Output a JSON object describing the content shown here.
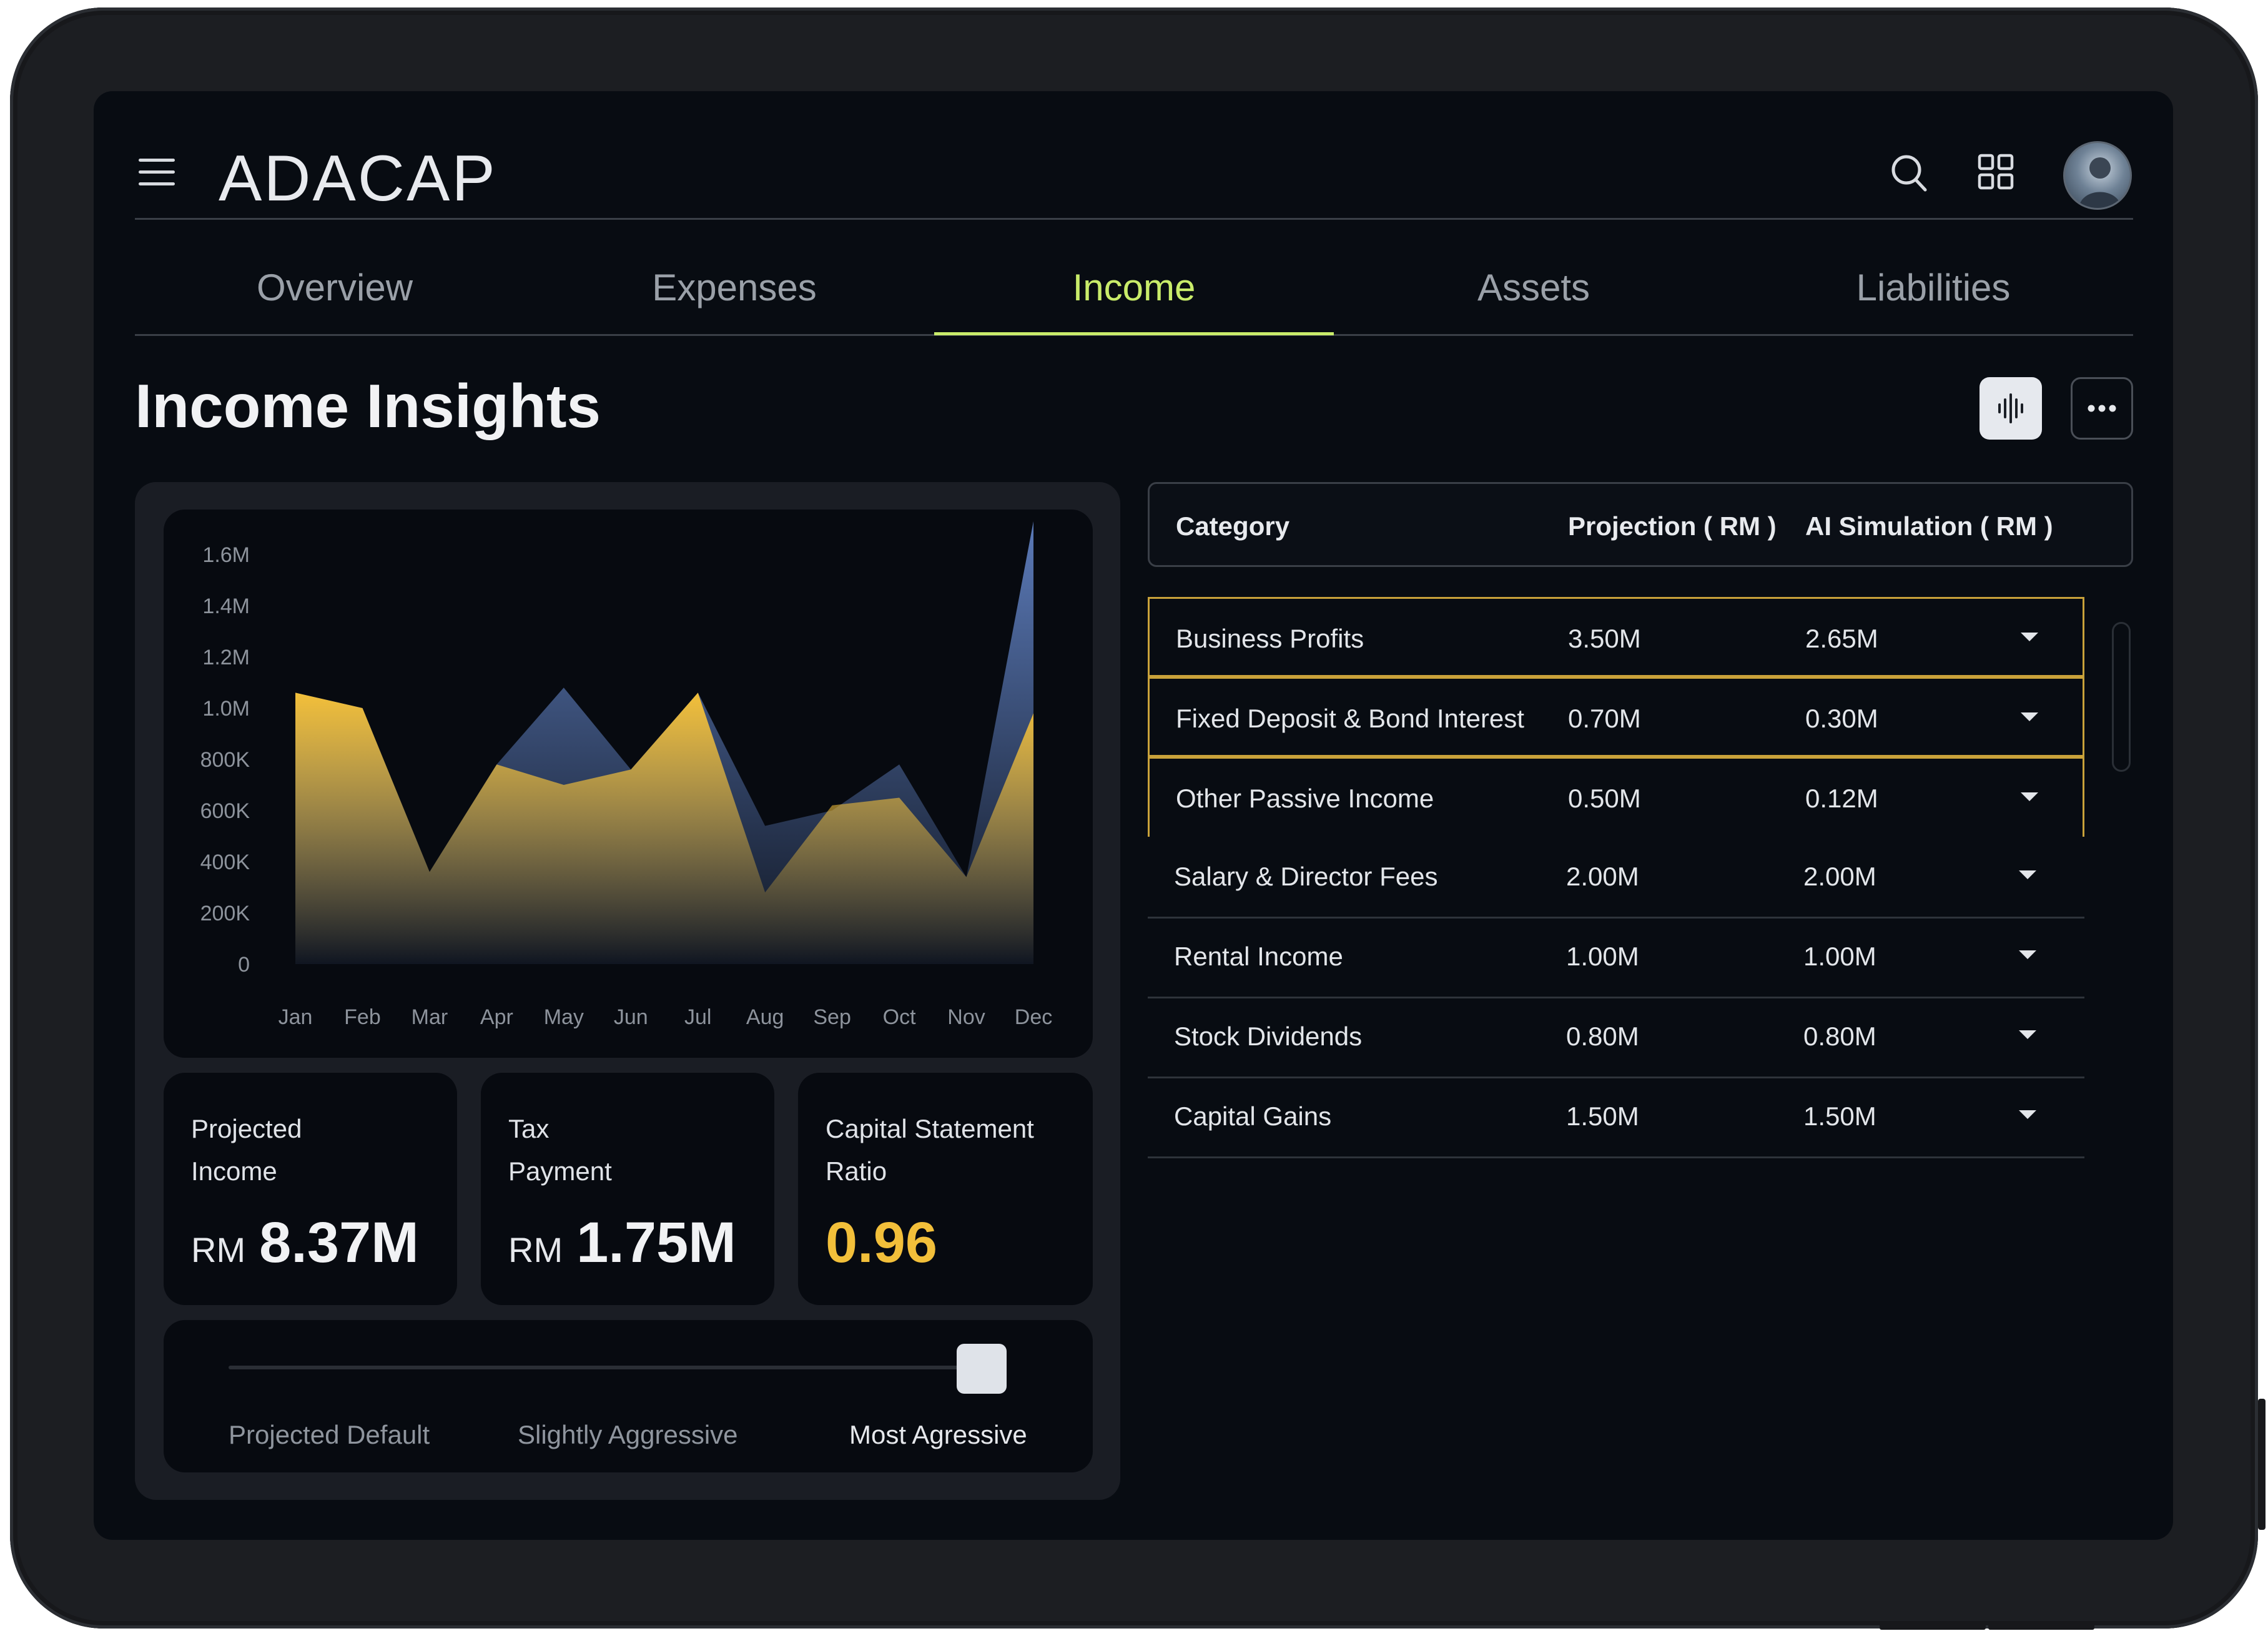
{
  "app": {
    "logo": "ADACAP"
  },
  "icons": {
    "menu": "hamburger-menu-icon",
    "search": "search-icon",
    "apps": "grid-apps-icon",
    "avatar": "user-avatar",
    "waveform": "waveform-icon",
    "more": "more-horizontal-icon",
    "caret": "caret-down-icon"
  },
  "tabs": [
    {
      "label": "Overview"
    },
    {
      "label": "Expenses"
    },
    {
      "label": "Income",
      "active": true
    },
    {
      "label": "Assets"
    },
    {
      "label": "Liabilities"
    }
  ],
  "page": {
    "title": "Income Insights"
  },
  "colors": {
    "accent": "#c9ec6a",
    "gold": "#f2bf3a",
    "blue_series": "#5b7ab8",
    "highlight_border": "#c9a23a"
  },
  "chart_data": {
    "type": "area",
    "categories": [
      "Jan",
      "Feb",
      "Mar",
      "Apr",
      "May",
      "Jun",
      "Jul",
      "Aug",
      "Sep",
      "Oct",
      "Nov",
      "Dec"
    ],
    "y_tick_labels": [
      "0",
      "200K",
      "400K",
      "600K",
      "800K",
      "1.0M",
      "1.2M",
      "1.4M",
      "1.6M"
    ],
    "ylim": [
      0,
      1600000
    ],
    "series": [
      {
        "color": "#5b7ab8",
        "values": [
          1060000,
          1000000,
          360000,
          780000,
          1080000,
          760000,
          1060000,
          540000,
          600000,
          780000,
          340000,
          1730000
        ]
      },
      {
        "color": "#f2bf3a",
        "values": [
          1060000,
          1000000,
          360000,
          780000,
          700000,
          760000,
          1060000,
          280000,
          620000,
          650000,
          340000,
          980000
        ]
      }
    ]
  },
  "stats": [
    {
      "label_line1": "Projected",
      "label_line2": "Income",
      "currency": "RM",
      "value": "8.37M"
    },
    {
      "label_line1": "Tax",
      "label_line2": "Payment",
      "currency": "RM",
      "value": "1.75M"
    },
    {
      "label_line1": "Capital Statement",
      "label_line2": "Ratio",
      "value": "0.96"
    }
  ],
  "slider": {
    "options": [
      "Projected Default",
      "Slightly Aggressive",
      "Most Agressive"
    ],
    "selected": "Most Agressive",
    "position": 1.0
  },
  "table": {
    "headers": [
      "Category",
      "Projection ( RM )",
      "AI Simulation ( RM )"
    ],
    "rows": [
      {
        "category": "Business Profits",
        "projection": "3.50M",
        "simulation": "2.65M"
      },
      {
        "category": "Fixed Deposit & Bond Interest",
        "projection": "0.70M",
        "simulation": "0.30M"
      },
      {
        "category": "Other Passive Income",
        "projection": "0.50M",
        "simulation": "0.12M"
      },
      {
        "category": "Salary & Director Fees",
        "projection": "2.00M",
        "simulation": "2.00M"
      },
      {
        "category": "Rental Income",
        "projection": "1.00M",
        "simulation": "1.00M"
      },
      {
        "category": "Stock Dividends",
        "projection": "0.80M",
        "simulation": "0.80M"
      },
      {
        "category": "Capital Gains",
        "projection": "1.50M",
        "simulation": "1.50M"
      }
    ]
  }
}
